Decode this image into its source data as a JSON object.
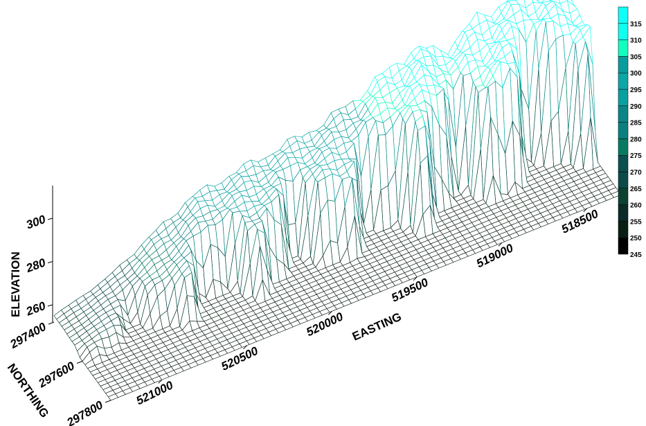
{
  "chart_data": {
    "type": "surface-3d-wireframe",
    "x_axis": {
      "label": "EASTING",
      "ticks": [
        521000,
        520500,
        520000,
        519500,
        519000,
        518500
      ],
      "range": [
        521300,
        518300
      ]
    },
    "y_axis": {
      "label": "NORTHING",
      "ticks": [
        297400,
        297600,
        297800
      ],
      "range": [
        297400,
        297800
      ]
    },
    "z_axis": {
      "label": "ELEVATION",
      "ticks": [
        260,
        280,
        300
      ],
      "range": [
        252,
        318
      ]
    },
    "ridge_profile": {
      "easting": [
        521300,
        521000,
        520700,
        520500,
        520200,
        520000,
        519700,
        519500,
        519200,
        519000,
        518800,
        518500,
        518300
      ],
      "elevation": [
        255,
        262,
        275,
        284,
        288,
        290,
        294,
        300,
        311,
        305,
        314,
        318,
        316
      ]
    },
    "colorbar": {
      "levels": [
        245,
        250,
        255,
        260,
        265,
        270,
        275,
        280,
        285,
        290,
        295,
        300,
        305,
        310,
        315,
        320
      ],
      "labels": [
        "245",
        "250",
        "255",
        "260",
        "265",
        "270",
        "275",
        "280",
        "285",
        "290",
        "295",
        "300",
        "305",
        "310",
        "315"
      ],
      "colors": [
        "#000000",
        "#0a1f14",
        "#0b2a28",
        "#0d4233",
        "#0b4a48",
        "#0c4f50",
        "#087a62",
        "#0a8080",
        "#0b8585",
        "#0aa0a0",
        "#0ca6a6",
        "#0a9c9c",
        "#12ffc0",
        "#10fff0",
        "#10fff8"
      ]
    }
  }
}
